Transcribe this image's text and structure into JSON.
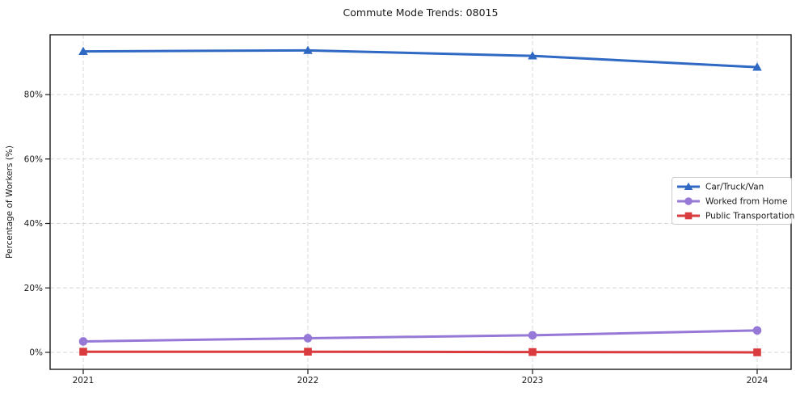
{
  "title": "Commute Mode Trends: 08015",
  "chart_data": {
    "type": "line",
    "title": "Commute Mode Trends: 08015",
    "xlabel": "",
    "ylabel": "Percentage of Workers (%)",
    "x": [
      2021,
      2022,
      2023,
      2024
    ],
    "x_tick_labels": [
      "2021",
      "2022",
      "2023",
      "2024"
    ],
    "y_ticks": [
      0,
      20,
      40,
      60,
      80
    ],
    "y_tick_labels": [
      "0%",
      "20%",
      "40%",
      "60%",
      "80%"
    ],
    "ylim": [
      -5.3,
      98.6
    ],
    "grid": "both-dashed",
    "legend_position": "center-right",
    "series": [
      {
        "name": "Car/Truck/Van",
        "marker": "triangle",
        "color": "#2f69c4",
        "values": [
          93.4,
          93.7,
          92.0,
          88.5
        ]
      },
      {
        "name": "Worked from Home",
        "marker": "circle",
        "color": "#9678d6",
        "values": [
          3.4,
          4.4,
          5.3,
          6.8
        ]
      },
      {
        "name": "Public Transportation",
        "marker": "square",
        "color": "#d93b3e",
        "values": [
          0.2,
          0.2,
          0.1,
          0.0
        ]
      }
    ],
    "colors": {
      "grid": "#d7d7d7",
      "spine": "#1a1a1a",
      "text": "#1a1a1a",
      "legend_border": "#cccccc",
      "legend_bg": "#ffffff"
    }
  }
}
